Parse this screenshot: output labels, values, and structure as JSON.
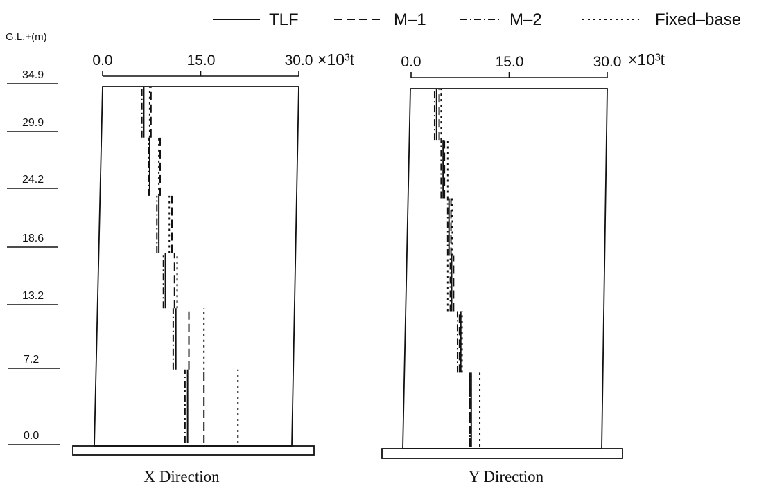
{
  "chart_data": {
    "type": "line",
    "title": "",
    "ylabel": "G.L.+(m)",
    "unit_label": "×10³t",
    "x_ticks": [
      "0.0",
      "15.0",
      "30.0"
    ],
    "xlim": [
      0,
      30
    ],
    "levels": [
      0.0,
      7.2,
      13.2,
      18.6,
      24.2,
      29.9,
      34.9
    ],
    "level_labels": [
      "0.0",
      "7.2",
      "13.2",
      "18.6",
      "24.2",
      "29.9",
      "34.9"
    ],
    "legend": [
      {
        "name": "TLF",
        "style": "solid"
      },
      {
        "name": "M–1",
        "style": "dashed"
      },
      {
        "name": "M–2",
        "style": "dashdot"
      },
      {
        "name": "Fixed–base",
        "style": "dotted"
      }
    ],
    "panels": [
      {
        "caption": "X Direction",
        "series": [
          {
            "name": "TLF",
            "values": [
              13.0,
              11.2,
              9.6,
              8.6,
              7.2,
              6.3
            ]
          },
          {
            "name": "M–1",
            "values": [
              15.5,
              13.2,
              11.0,
              10.6,
              8.8,
              7.4
            ]
          },
          {
            "name": "M–2",
            "values": [
              12.6,
              10.8,
              9.3,
              8.3,
              7.0,
              6.0
            ]
          },
          {
            "name": "Fixed–base",
            "values": [
              20.7,
              15.5,
              11.4,
              10.2,
              8.6,
              7.2
            ]
          }
        ]
      },
      {
        "caption": "Y Direction",
        "series": [
          {
            "name": "TLF",
            "values": [
              9.2,
              7.6,
              6.2,
              5.8,
              4.9,
              3.9
            ]
          },
          {
            "name": "M–1",
            "values": [
              9.0,
              7.4,
              6.5,
              6.1,
              5.1,
              4.3
            ]
          },
          {
            "name": "M–2",
            "values": [
              9.0,
              7.1,
              6.0,
              5.6,
              4.6,
              3.6
            ]
          },
          {
            "name": "Fixed–base",
            "values": [
              10.5,
              7.8,
              5.6,
              6.3,
              5.6,
              4.6
            ]
          }
        ]
      }
    ]
  }
}
